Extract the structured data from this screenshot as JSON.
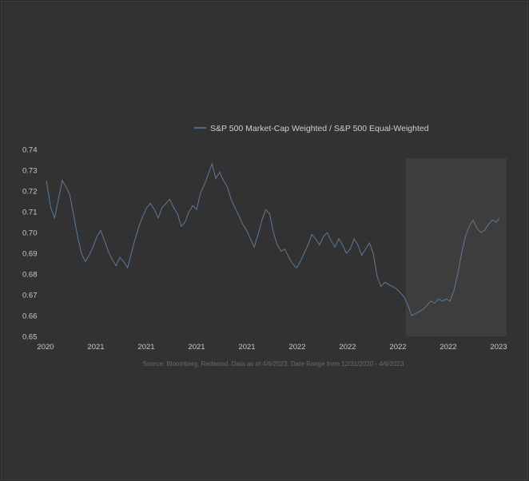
{
  "colors": {
    "background": "#323232",
    "line": "#5b7a99",
    "highlight": "#3d3d3d",
    "text": "#c9c9c9"
  },
  "chart_data": {
    "type": "line",
    "title": "",
    "xlabel": "",
    "ylabel": "",
    "legend": {
      "position": "top-center"
    },
    "source": "Source: Bloomberg, Redwood. Data as of 4/6/2023. Date Range from 12/31/2020 - 4/6/2023",
    "ylim": [
      0.65,
      0.74
    ],
    "y_ticks": [
      "0.65",
      "0.66",
      "0.67",
      "0.68",
      "0.69",
      "0.70",
      "0.71",
      "0.72",
      "0.73",
      "0.74"
    ],
    "x_tick_labels": [
      "2020",
      "2021",
      "2021",
      "2021",
      "2021",
      "2022",
      "2022",
      "2022",
      "2022",
      "2023"
    ],
    "xlim": [
      "2020-12-31",
      "2023-04-06"
    ],
    "highlight_region": {
      "from": "2022-10-20",
      "to": "2023-04-06",
      "shading": "light"
    },
    "grid": false,
    "series": [
      {
        "name": "S&P 500 Market-Cap Weighted / S&P 500 Equal-Weighted",
        "color": "#5b7a99",
        "x": [
          "2020-12-31",
          "2021-01-08",
          "2021-01-15",
          "2021-01-22",
          "2021-01-29",
          "2021-02-05",
          "2021-02-12",
          "2021-02-19",
          "2021-02-26",
          "2021-03-05",
          "2021-03-12",
          "2021-03-19",
          "2021-03-26",
          "2021-04-02",
          "2021-04-09",
          "2021-04-16",
          "2021-04-23",
          "2021-04-30",
          "2021-05-07",
          "2021-05-14",
          "2021-05-21",
          "2021-05-28",
          "2021-06-04",
          "2021-06-11",
          "2021-06-18",
          "2021-06-25",
          "2021-07-02",
          "2021-07-09",
          "2021-07-16",
          "2021-07-23",
          "2021-07-30",
          "2021-08-06",
          "2021-08-13",
          "2021-08-20",
          "2021-08-27",
          "2021-09-03",
          "2021-09-10",
          "2021-09-17",
          "2021-09-24",
          "2021-10-01",
          "2021-10-08",
          "2021-10-15",
          "2021-10-22",
          "2021-10-29",
          "2021-11-05",
          "2021-11-12",
          "2021-11-19",
          "2021-11-26",
          "2021-12-03",
          "2021-12-10",
          "2021-12-17",
          "2021-12-24",
          "2021-12-31",
          "2022-01-07",
          "2022-01-14",
          "2022-01-21",
          "2022-01-28",
          "2022-02-04",
          "2022-02-11",
          "2022-02-18",
          "2022-02-25",
          "2022-03-04",
          "2022-03-11",
          "2022-03-18",
          "2022-03-25",
          "2022-04-01",
          "2022-04-08",
          "2022-04-15",
          "2022-04-22",
          "2022-04-29",
          "2022-05-06",
          "2022-05-13",
          "2022-05-20",
          "2022-05-27",
          "2022-06-03",
          "2022-06-10",
          "2022-06-17",
          "2022-06-24",
          "2022-07-01",
          "2022-07-08",
          "2022-07-15",
          "2022-07-22",
          "2022-07-29",
          "2022-08-05",
          "2022-08-12",
          "2022-08-19",
          "2022-08-26",
          "2022-09-02",
          "2022-09-09",
          "2022-09-16",
          "2022-09-23",
          "2022-09-30",
          "2022-10-07",
          "2022-10-14",
          "2022-10-21",
          "2022-10-28",
          "2022-11-04",
          "2022-11-11",
          "2022-11-18",
          "2022-11-25",
          "2022-12-02",
          "2022-12-09",
          "2022-12-16",
          "2022-12-23",
          "2022-12-30",
          "2023-01-06",
          "2023-01-13",
          "2023-01-20",
          "2023-01-27",
          "2023-02-03",
          "2023-02-10",
          "2023-02-17",
          "2023-02-24",
          "2023-03-03",
          "2023-03-10",
          "2023-03-17",
          "2023-03-24",
          "2023-03-31",
          "2023-04-06"
        ],
        "values": [
          0.725,
          0.712,
          0.707,
          0.716,
          0.725,
          0.722,
          0.718,
          0.708,
          0.698,
          0.69,
          0.686,
          0.689,
          0.693,
          0.698,
          0.701,
          0.696,
          0.691,
          0.687,
          0.684,
          0.688,
          0.686,
          0.683,
          0.69,
          0.697,
          0.703,
          0.708,
          0.712,
          0.714,
          0.711,
          0.707,
          0.712,
          0.714,
          0.716,
          0.712,
          0.709,
          0.703,
          0.705,
          0.71,
          0.713,
          0.711,
          0.719,
          0.723,
          0.728,
          0.733,
          0.726,
          0.729,
          0.725,
          0.722,
          0.716,
          0.712,
          0.708,
          0.704,
          0.701,
          0.697,
          0.693,
          0.699,
          0.706,
          0.711,
          0.709,
          0.7,
          0.694,
          0.691,
          0.692,
          0.688,
          0.685,
          0.683,
          0.686,
          0.69,
          0.694,
          0.699,
          0.697,
          0.694,
          0.698,
          0.7,
          0.696,
          0.693,
          0.697,
          0.694,
          0.69,
          0.692,
          0.697,
          0.694,
          0.689,
          0.692,
          0.695,
          0.69,
          0.679,
          0.674,
          0.676,
          0.675,
          0.674,
          0.673,
          0.671,
          0.669,
          0.665,
          0.66,
          0.661,
          0.662,
          0.663,
          0.665,
          0.667,
          0.666,
          0.668,
          0.667,
          0.668,
          0.667,
          0.672,
          0.68,
          0.69,
          0.698,
          0.703,
          0.706,
          0.702,
          0.7,
          0.701,
          0.704,
          0.706,
          0.705,
          0.707
        ]
      }
    ]
  }
}
